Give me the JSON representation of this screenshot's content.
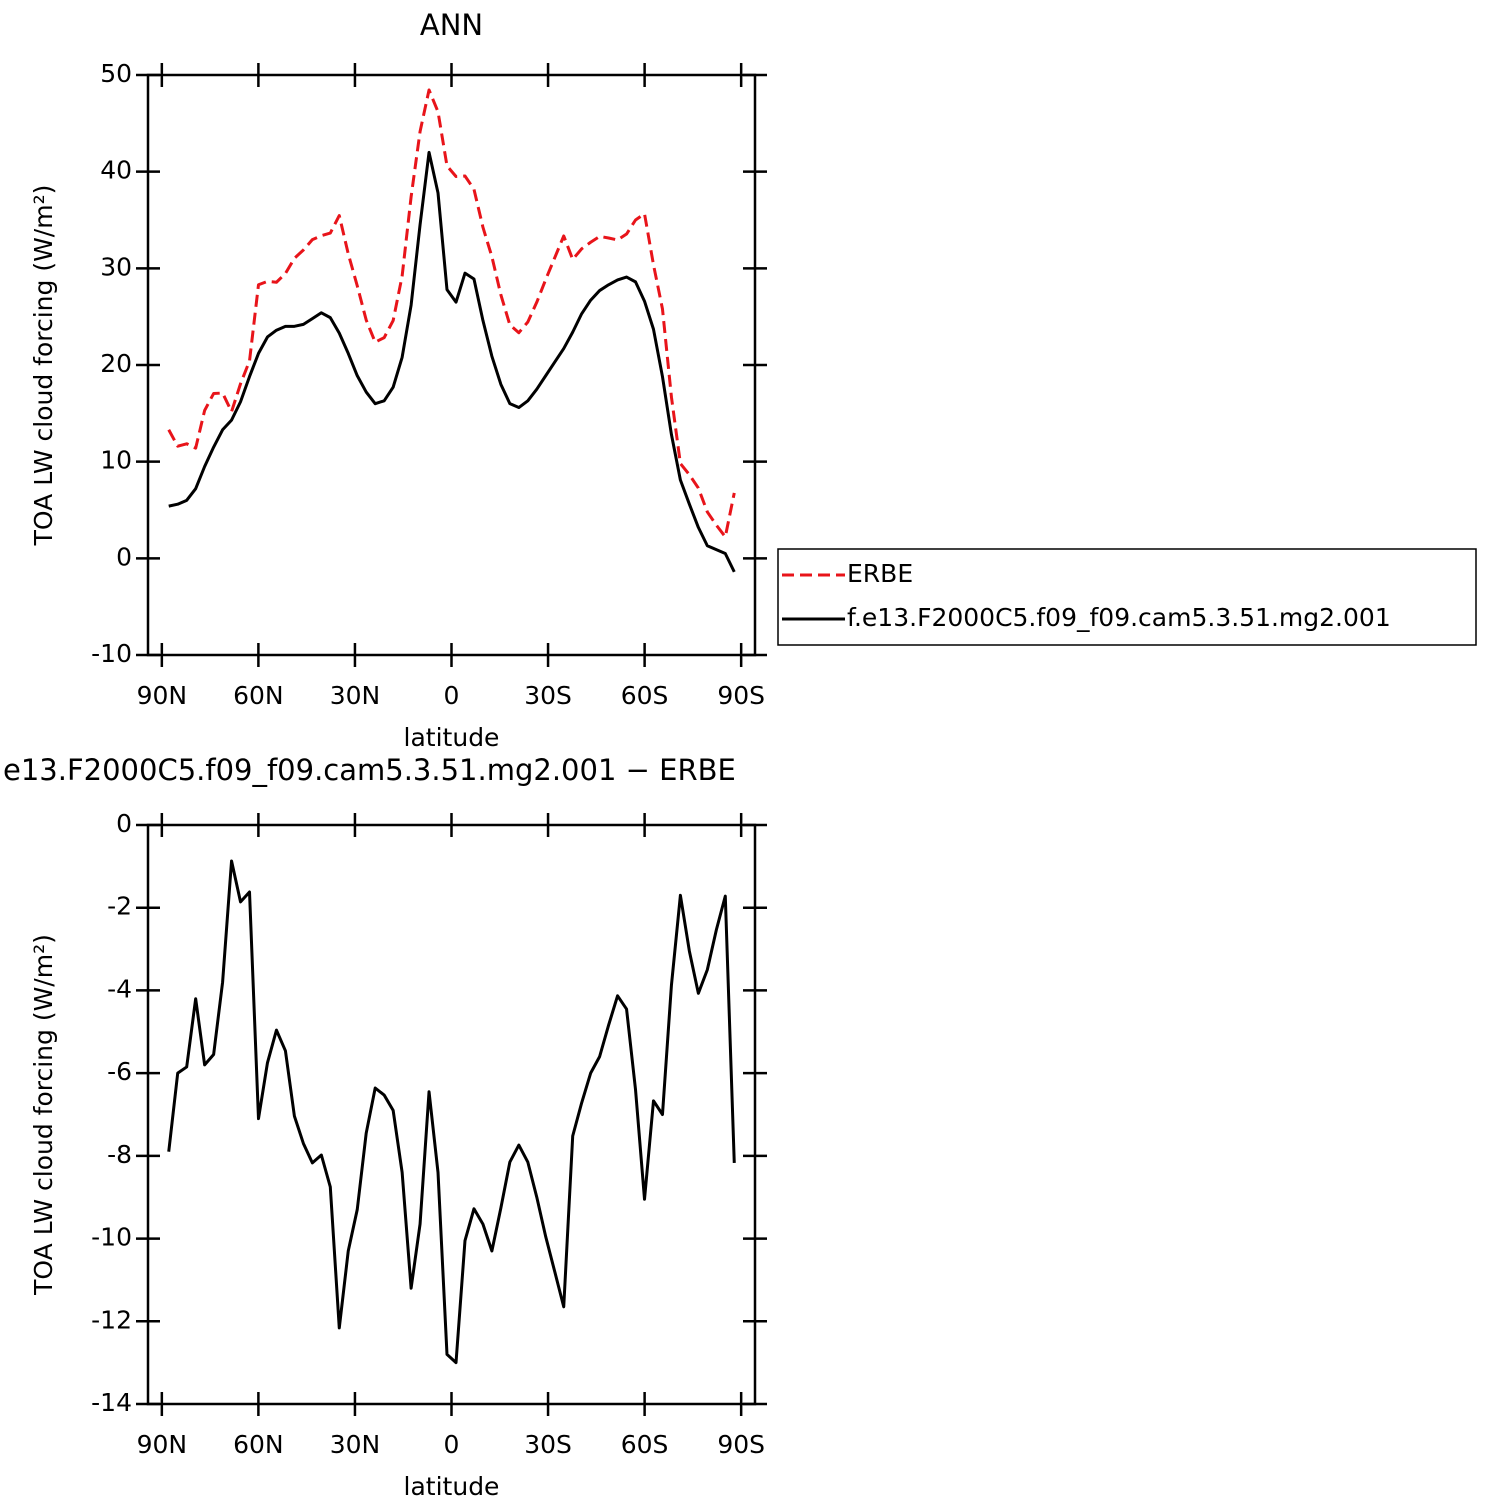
{
  "chart_data": [
    {
      "type": "line",
      "title": "ANN",
      "ylabel": "TOA LW cloud forcing (W/m²)",
      "xlabel": "latitude",
      "xlim": [
        94.3,
        -94.3
      ],
      "ylim": [
        -10,
        50
      ],
      "xticks": [
        {
          "value": 90,
          "label": "90N"
        },
        {
          "value": 60,
          "label": "60N"
        },
        {
          "value": 30,
          "label": "30N"
        },
        0,
        {
          "value": -30,
          "label": "30S"
        },
        {
          "value": -60,
          "label": "60S"
        },
        {
          "value": -90,
          "label": "90S"
        }
      ],
      "yticks": [
        -10,
        0,
        10,
        20,
        30,
        40,
        50
      ],
      "x": [
        87.86,
        85.07,
        82.28,
        79.49,
        76.7,
        73.91,
        71.12,
        68.34,
        65.55,
        62.76,
        59.97,
        57.18,
        54.39,
        51.6,
        48.81,
        46.02,
        43.23,
        40.44,
        37.66,
        34.87,
        32.08,
        29.29,
        26.5,
        23.71,
        20.92,
        18.13,
        15.34,
        12.55,
        9.77,
        6.98,
        4.19,
        1.4,
        -1.4,
        -4.19,
        -6.98,
        -9.77,
        -12.55,
        -15.34,
        -18.13,
        -20.92,
        -23.71,
        -26.5,
        -29.29,
        -32.08,
        -34.87,
        -37.66,
        -40.44,
        -43.23,
        -46.02,
        -48.81,
        -51.6,
        -54.39,
        -57.18,
        -59.97,
        -62.76,
        -65.55,
        -68.34,
        -71.12,
        -73.91,
        -76.7,
        -79.49,
        -82.28,
        -85.07,
        -87.86
      ],
      "series": [
        {
          "name": "ERBE",
          "color": "#e8141a",
          "dash": true,
          "values": [
            13.3,
            11.6,
            11.85,
            11.4,
            15.3,
            17.05,
            17.1,
            15.17,
            18.06,
            20.42,
            28.3,
            28.65,
            28.56,
            29.46,
            31.04,
            31.9,
            32.97,
            33.38,
            33.65,
            35.46,
            31.5,
            28.2,
            24.65,
            22.36,
            22.83,
            24.6,
            29.2,
            37.4,
            44.15,
            48.45,
            46.2,
            40.6,
            39.5,
            39.55,
            38.18,
            34.25,
            31.2,
            27.26,
            24.15,
            23.34,
            24.45,
            26.5,
            28.86,
            31.1,
            33.35,
            30.92,
            32.02,
            32.7,
            33.3,
            33.14,
            32.93,
            33.55,
            35.0,
            35.65,
            30.37,
            25.8,
            16.67,
            9.8,
            8.65,
            7.27,
            4.8,
            3.44,
            2.22,
            6.77
          ]
        },
        {
          "name": "f.e13.F2000C5.f09_f09.cam5.3.51.mg2.001",
          "color": "#000000",
          "dash": false,
          "values": [
            5.4,
            5.6,
            6.0,
            7.2,
            9.5,
            11.5,
            13.3,
            14.3,
            16.2,
            18.8,
            21.2,
            22.9,
            23.6,
            24.0,
            24.0,
            24.2,
            24.8,
            25.4,
            24.9,
            23.3,
            21.2,
            18.9,
            17.2,
            16.0,
            16.3,
            17.7,
            20.8,
            26.2,
            34.5,
            42.0,
            37.8,
            27.8,
            26.5,
            29.5,
            28.9,
            24.6,
            20.9,
            18.0,
            16.0,
            15.6,
            16.3,
            17.5,
            18.9,
            20.3,
            21.7,
            23.4,
            25.3,
            26.7,
            27.7,
            28.3,
            28.8,
            29.1,
            28.6,
            26.6,
            23.7,
            18.8,
            12.8,
            8.1,
            5.6,
            3.2,
            1.3,
            0.9,
            0.5,
            -1.4
          ]
        }
      ]
    },
    {
      "type": "line",
      "title": "e13.F2000C5.f09_f09.cam5.3.51.mg2.001 − ERBE",
      "ylabel": "TOA LW cloud forcing (W/m²)",
      "xlabel": "latitude",
      "xlim": [
        94.3,
        -94.3
      ],
      "ylim": [
        -14,
        0
      ],
      "xticks": [
        {
          "value": 90,
          "label": "90N"
        },
        {
          "value": 60,
          "label": "60N"
        },
        {
          "value": 30,
          "label": "30N"
        },
        0,
        {
          "value": -30,
          "label": "30S"
        },
        {
          "value": -60,
          "label": "60S"
        },
        {
          "value": -90,
          "label": "90S"
        }
      ],
      "yticks": [
        -14,
        -12,
        -10,
        -8,
        -6,
        -4,
        -2,
        0
      ],
      "x": [
        87.86,
        85.07,
        82.28,
        79.49,
        76.7,
        73.91,
        71.12,
        68.34,
        65.55,
        62.76,
        59.97,
        57.18,
        54.39,
        51.6,
        48.81,
        46.02,
        43.23,
        40.44,
        37.66,
        34.87,
        32.08,
        29.29,
        26.5,
        23.71,
        20.92,
        18.13,
        15.34,
        12.55,
        9.77,
        6.98,
        4.19,
        1.4,
        -1.4,
        -4.19,
        -6.98,
        -9.77,
        -12.55,
        -15.34,
        -18.13,
        -20.92,
        -23.71,
        -26.5,
        -29.29,
        -32.08,
        -34.87,
        -37.66,
        -40.44,
        -43.23,
        -46.02,
        -48.81,
        -51.6,
        -54.39,
        -57.18,
        -59.97,
        -62.76,
        -65.55,
        -68.34,
        -71.12,
        -73.91,
        -76.7,
        -79.49,
        -82.28,
        -85.07,
        -87.86
      ],
      "series": [
        {
          "color": "#000000",
          "dash": false,
          "values": [
            -7.9,
            -6.0,
            -5.85,
            -4.2,
            -5.8,
            -5.55,
            -3.8,
            -0.87,
            -1.86,
            -1.62,
            -7.1,
            -5.75,
            -4.96,
            -5.46,
            -7.04,
            -7.7,
            -8.17,
            -7.98,
            -8.75,
            -12.16,
            -10.3,
            -9.3,
            -7.45,
            -6.36,
            -6.53,
            -6.9,
            -8.4,
            -11.2,
            -9.65,
            -6.45,
            -8.4,
            -12.8,
            -13.0,
            -10.05,
            -9.28,
            -9.65,
            -10.3,
            -9.26,
            -8.15,
            -7.74,
            -8.15,
            -9.0,
            -9.96,
            -10.8,
            -11.65,
            -7.52,
            -6.72,
            -6.0,
            -5.6,
            -4.84,
            -4.13,
            -4.45,
            -6.4,
            -9.05,
            -6.67,
            -7.0,
            -3.87,
            -1.7,
            -3.05,
            -4.07,
            -3.5,
            -2.54,
            -1.72,
            -8.17
          ]
        }
      ]
    }
  ]
}
